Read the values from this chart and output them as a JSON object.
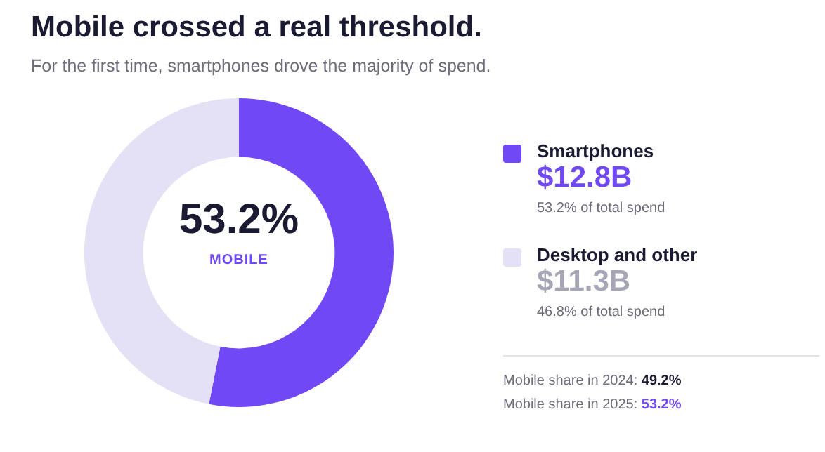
{
  "chart_data": {
    "type": "donut",
    "title": "Mobile crossed a real threshold.",
    "subtitle": "For the first time, smartphones drove the majority of spend.",
    "categories": [
      "Smartphones",
      "Desktop and other"
    ],
    "values": [
      12.8,
      11.3
    ],
    "value_labels": [
      "$12.8B",
      "$11.3B"
    ],
    "colors": [
      "#7048f5",
      "#e4e0f5"
    ],
    "legend": "right",
    "annotations": [
      "53.2%",
      "MOBILE",
      "53.2% of total spend",
      "46.8% of total spend",
      "Mobile share in 2024: 49.2%",
      "Mobile share in 2025: 53.2%"
    ]
  }
}
